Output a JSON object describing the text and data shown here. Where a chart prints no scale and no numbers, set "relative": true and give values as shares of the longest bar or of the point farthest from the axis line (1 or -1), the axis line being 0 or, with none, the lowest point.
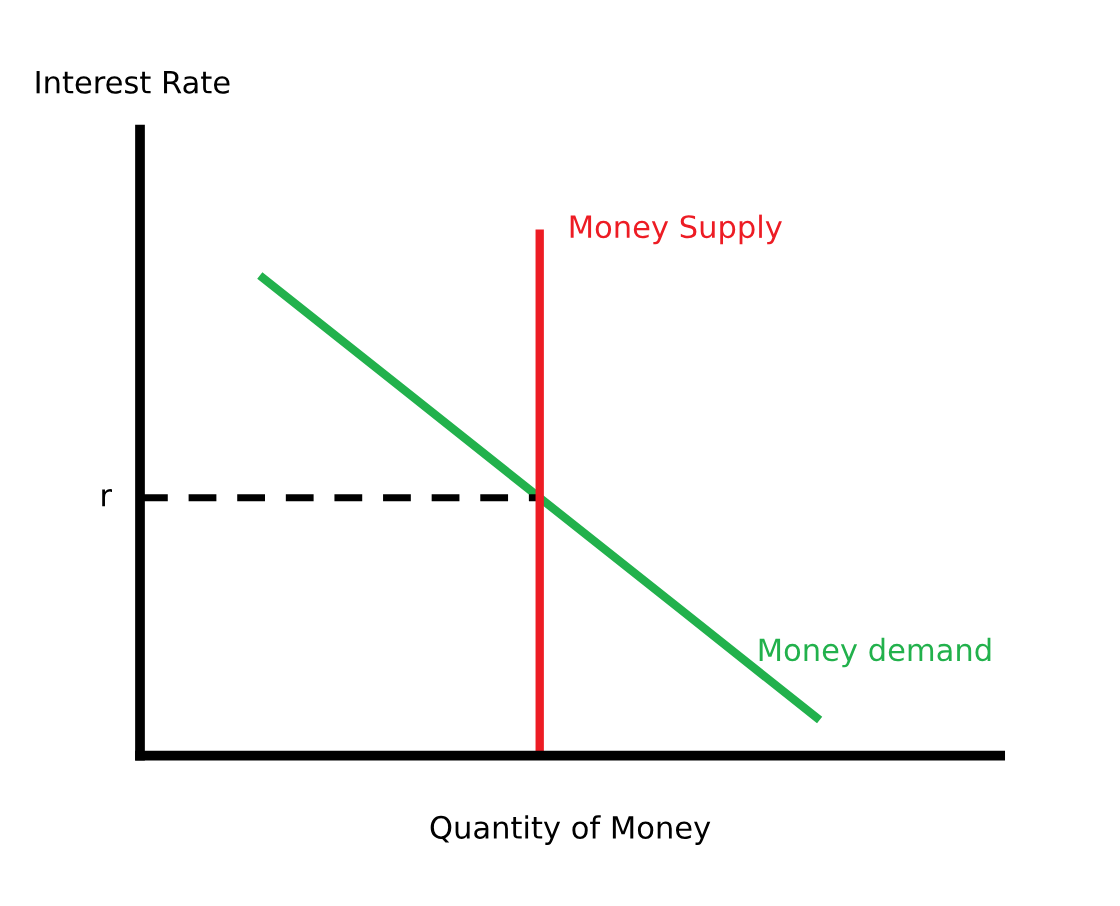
{
  "chart_data": {
    "type": "line",
    "relative": true,
    "xlabel": "Quantity of Money",
    "marker": "none",
    "line_style": "solid",
    "annotations": [
      "Interest Rate",
      "Money Supply"
    ],
    "categories": [
      null,
      null,
      null,
      null,
      null
    ],
    "series": [
      {
        "name": "Money demand",
        "color": "#22b14c",
        "values": [
          1,
          0.769,
          0.537,
          0.306,
          0.074
        ]
      }
    ],
    "ref_lines": [
      {
        "axis": "y",
        "value": 0.537,
        "label": "r",
        "color": "#000000",
        "line_style": "dashed"
      }
    ]
  }
}
